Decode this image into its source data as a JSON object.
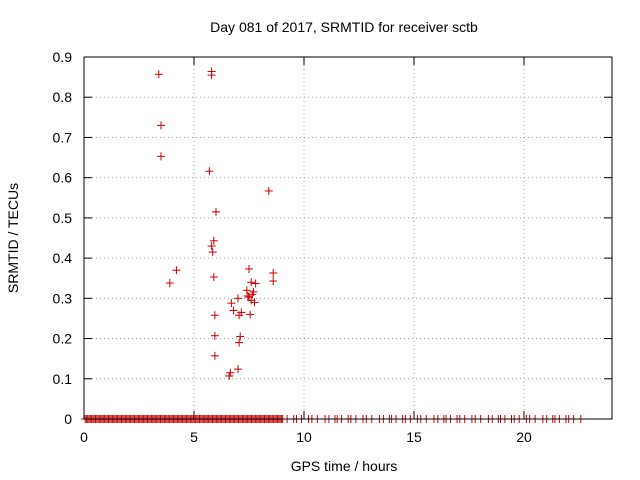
{
  "colors": {
    "background": "#ffffff",
    "axis": "#000000",
    "grid": "#a0a0a0",
    "series": "#cc0000"
  },
  "chart_data": {
    "type": "scatter",
    "title": "Day 081 of 2017, SRMTID for receiver sctb",
    "xlabel": "GPS time / hours",
    "ylabel": "SRMTID / TECUs",
    "xlim": [
      0,
      24
    ],
    "ylim": [
      0,
      0.9
    ],
    "xticks": [
      0,
      5,
      10,
      15,
      20
    ],
    "yticks": [
      0,
      0.1,
      0.2,
      0.3,
      0.4,
      0.5,
      0.6,
      0.7,
      0.8,
      0.9
    ],
    "xtick_labels": [
      "0",
      "5",
      "10",
      "15",
      "20"
    ],
    "ytick_labels": [
      "0",
      "0.1",
      "0.2",
      "0.3",
      "0.4",
      "0.5",
      "0.6",
      "0.7",
      "0.8",
      "0.9"
    ],
    "grid": true,
    "marker": "+",
    "series": [
      {
        "name": "SRMTID",
        "points": [
          [
            3.4,
            0.857
          ],
          [
            3.5,
            0.73
          ],
          [
            3.5,
            0.653
          ],
          [
            3.9,
            0.338
          ],
          [
            4.2,
            0.37
          ],
          [
            5.7,
            0.616
          ],
          [
            5.8,
            0.864
          ],
          [
            5.8,
            0.855
          ],
          [
            5.8,
            0.43
          ],
          [
            5.85,
            0.415
          ],
          [
            5.9,
            0.443
          ],
          [
            5.9,
            0.353
          ],
          [
            5.95,
            0.258
          ],
          [
            5.95,
            0.207
          ],
          [
            5.95,
            0.157
          ],
          [
            6.0,
            0.515
          ],
          [
            6.6,
            0.107
          ],
          [
            6.65,
            0.115
          ],
          [
            6.7,
            0.288
          ],
          [
            6.8,
            0.27
          ],
          [
            7.0,
            0.124
          ],
          [
            7.0,
            0.3
          ],
          [
            7.05,
            0.19
          ],
          [
            7.05,
            0.258
          ],
          [
            7.1,
            0.205
          ],
          [
            7.15,
            0.265
          ],
          [
            7.4,
            0.32
          ],
          [
            7.45,
            0.306
          ],
          [
            7.5,
            0.373
          ],
          [
            7.5,
            0.303
          ],
          [
            7.55,
            0.26
          ],
          [
            7.6,
            0.34
          ],
          [
            7.6,
            0.295
          ],
          [
            7.65,
            0.31
          ],
          [
            7.7,
            0.316
          ],
          [
            7.75,
            0.29
          ],
          [
            7.8,
            0.337
          ],
          [
            8.4,
            0.567
          ],
          [
            8.6,
            0.363
          ],
          [
            8.6,
            0.343
          ]
        ]
      }
    ],
    "baseline": {
      "y": 0,
      "x_dense_start": 0.05,
      "x_dense_end": 9.0,
      "x_sparse_end": 22.6
    }
  }
}
